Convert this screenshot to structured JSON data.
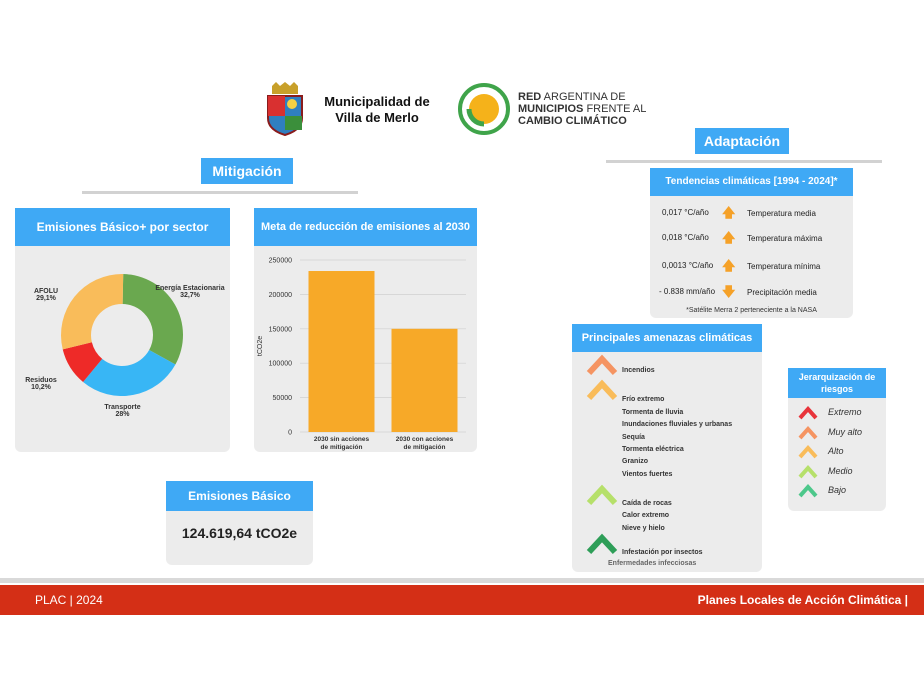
{
  "header": {
    "municipality": "Municipalidad de\nVilla de Merlo",
    "red": {
      "line1_bold": "RED",
      "line1_rest": " ARGENTINA DE",
      "line2_bold": "MUNICIPIOS",
      "line2_rest": " FRENTE AL",
      "line3_bold": "CAMBIO CLIMÁTICO"
    }
  },
  "mitigacion": {
    "title": "Mitigación",
    "donut": {
      "title": "Emisiones Básico+ por sector",
      "labels": [
        {
          "name": "Energía Estacionaria",
          "pct": "32,7%"
        },
        {
          "name": "Transporte",
          "pct": "28%"
        },
        {
          "name": "Residuos",
          "pct": "10,2%"
        },
        {
          "name": "AFOLU",
          "pct": "29,1%"
        }
      ]
    },
    "bar": {
      "title": "Meta de reducción de emisiones al 2030"
    },
    "basico": {
      "title": "Emisiones Básico",
      "value": "124.619,64 tCO2e"
    }
  },
  "chart_data": [
    {
      "type": "pie",
      "title": "Emisiones Básico+ por sector",
      "categories": [
        "Energía Estacionaria",
        "Transporte",
        "Residuos",
        "AFOLU"
      ],
      "values": [
        32.7,
        28,
        10.2,
        29.1
      ],
      "colors": [
        "#6aa84f",
        "#38b6f5",
        "#ee2a28",
        "#f9bc5a"
      ]
    },
    {
      "type": "bar",
      "title": "Meta de reducción de emisiones al 2030",
      "categories": [
        "2030 sin acciones de mitigación",
        "2030 con acciones de mitigación"
      ],
      "values": [
        234000,
        150000
      ],
      "ylabel": "tCO2e",
      "ylim": [
        0,
        250000
      ],
      "yticks": [
        0,
        50000,
        100000,
        150000,
        200000,
        250000
      ],
      "color": "#f7a928",
      "grid": true
    }
  ],
  "adaptacion": {
    "title": "Adaptación",
    "tendencias": {
      "title": "Tendencias climáticas  [1994 - 2024]*",
      "rows": [
        {
          "value": "0,017 °C/año",
          "dir": "up",
          "label": "Temperatura media"
        },
        {
          "value": "0,018 °C/año",
          "dir": "up",
          "label": "Temperatura máxima"
        },
        {
          "value": "0,0013 °C/año",
          "dir": "up",
          "label": "Temperatura mínima"
        },
        {
          "value": "- 0.838 mm/año",
          "dir": "down",
          "label": "Precipitación media"
        }
      ],
      "note": "*Satélite Merra 2 perteneciente a la NASA"
    },
    "amenazas": {
      "title": "Principales amenazas climáticas",
      "items": [
        "Incendios",
        "Frío extremo",
        "Tormenta de lluvia",
        "Inundaciones fluviales y urbanas",
        "Sequía",
        "Tormenta eléctrica",
        "Granizo",
        "Vientos fuertes",
        "Caída de rocas",
        "Calor extremo",
        "Nieve y hielo",
        "Infestación por insectos",
        "Enfermedades infecciosas"
      ]
    },
    "jerarquizacion": {
      "title": "Jerarquización de riesgos",
      "items": [
        {
          "label": "Extremo",
          "color": "#e8343b"
        },
        {
          "label": "Muy alto",
          "color": "#f59462"
        },
        {
          "label": "Alto",
          "color": "#f9bc5a"
        },
        {
          "label": "Medio",
          "color": "#b6e06a"
        },
        {
          "label": "Bajo",
          "color": "#4dc88b"
        }
      ]
    }
  },
  "footer": {
    "left": "PLAC | 2024",
    "right": "Planes Locales de Acción Climática |"
  }
}
